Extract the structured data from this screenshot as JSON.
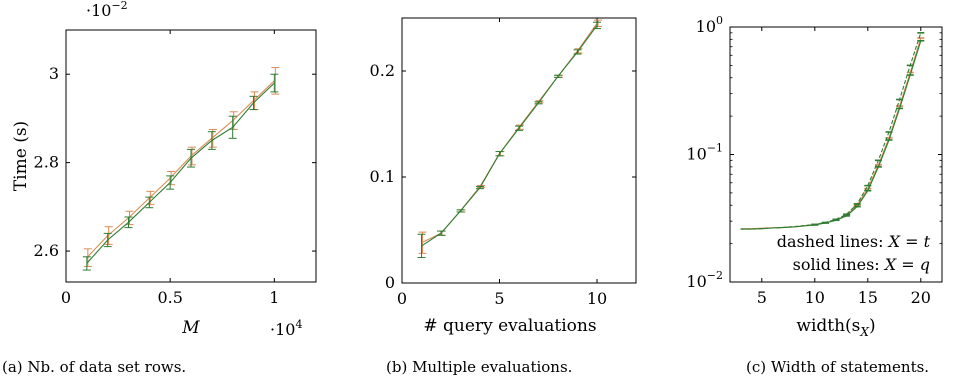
{
  "colors": {
    "green": "#2e7d32",
    "orange": "#d98c55"
  },
  "chart_data": [
    {
      "type": "line",
      "xlabel": "M",
      "ylabel": "Time (s)",
      "x_multiplier": "·10",
      "x_multiplier_exp": "4",
      "y_multiplier": "·10",
      "y_multiplier_exp": "−2",
      "xlim": [
        0,
        1.2
      ],
      "ylim": [
        2.53,
        3.1
      ],
      "xticks": [
        0,
        0.5,
        1
      ],
      "xtick_labels": [
        "0",
        "0.5",
        "1"
      ],
      "yticks": [
        2.6,
        2.8,
        3.0
      ],
      "ytick_labels": [
        "2.6",
        "2.8",
        "3"
      ],
      "caption": "(a) Nb. of data set rows.",
      "series": [
        {
          "color": "green",
          "style": "solid",
          "x": [
            0.1,
            0.2,
            0.3,
            0.4,
            0.5,
            0.6,
            0.7,
            0.8,
            0.9,
            1.0
          ],
          "y": [
            2.572,
            2.625,
            2.665,
            2.71,
            2.755,
            2.81,
            2.85,
            2.88,
            2.935,
            2.98
          ],
          "err": [
            0.015,
            0.015,
            0.012,
            0.012,
            0.015,
            0.02,
            0.02,
            0.025,
            0.015,
            0.02
          ]
        },
        {
          "color": "orange",
          "style": "solid",
          "x": [
            0.1,
            0.2,
            0.3,
            0.4,
            0.5,
            0.6,
            0.7,
            0.8,
            0.9,
            1.0
          ],
          "y": [
            2.585,
            2.635,
            2.675,
            2.72,
            2.765,
            2.815,
            2.855,
            2.895,
            2.94,
            2.985
          ],
          "err": [
            0.02,
            0.02,
            0.015,
            0.015,
            0.015,
            0.02,
            0.02,
            0.02,
            0.02,
            0.03
          ]
        }
      ]
    },
    {
      "type": "line",
      "xlabel": "# query evaluations",
      "ylabel": "",
      "xlim": [
        0,
        12
      ],
      "ylim": [
        0,
        0.25
      ],
      "xticks": [
        0,
        5,
        10
      ],
      "xtick_labels": [
        "0",
        "5",
        "10"
      ],
      "yticks": [
        0,
        0.1,
        0.2
      ],
      "ytick_labels": [
        "0",
        "0.1",
        "0.2"
      ],
      "caption": "(b) Multiple evaluations.",
      "series": [
        {
          "color": "green",
          "style": "solid",
          "x": [
            1,
            2,
            3,
            4,
            5,
            6,
            7,
            8,
            9,
            10
          ],
          "y": [
            0.035,
            0.047,
            0.068,
            0.09,
            0.122,
            0.146,
            0.17,
            0.195,
            0.218,
            0.243
          ],
          "err": [
            0.011,
            0.002,
            0.001,
            0.001,
            0.002,
            0.002,
            0.001,
            0.001,
            0.002,
            0.003
          ]
        },
        {
          "color": "orange",
          "style": "solid",
          "x": [
            1,
            2,
            3,
            4,
            5,
            6,
            7,
            8,
            9,
            10
          ],
          "y": [
            0.038,
            0.047,
            0.068,
            0.091,
            0.122,
            0.147,
            0.171,
            0.195,
            0.219,
            0.245
          ],
          "err": [
            0.01,
            0.002,
            0.001,
            0.001,
            0.002,
            0.002,
            0.001,
            0.001,
            0.002,
            0.003
          ]
        }
      ]
    },
    {
      "type": "line",
      "xlabel": "width(s",
      "xlabel_sub": "X",
      "xlabel_end": ")",
      "ylabel": "",
      "log_y": true,
      "xlim": [
        2,
        22
      ],
      "ylim": [
        0.01,
        1
      ],
      "xticks": [
        5,
        10,
        15,
        20
      ],
      "xtick_labels": [
        "5",
        "10",
        "15",
        "20"
      ],
      "yticks": [
        0.01,
        0.1,
        1
      ],
      "ytick_base": "10",
      "ytick_exps": [
        "−2",
        "−1",
        "0"
      ],
      "caption": "(c) Width of statements.",
      "annotations": [
        {
          "text": "dashed lines: ",
          "math": "X = t"
        },
        {
          "text": "solid lines: ",
          "math": "X = q"
        }
      ],
      "series": [
        {
          "color": "green",
          "style": "solid",
          "x": [
            3,
            4,
            5,
            6,
            7,
            8,
            9,
            10,
            11,
            12,
            13,
            14,
            15,
            16,
            17,
            18,
            19,
            20
          ],
          "y": [
            0.026,
            0.026,
            0.0262,
            0.0265,
            0.0267,
            0.027,
            0.0275,
            0.028,
            0.029,
            0.0305,
            0.033,
            0.039,
            0.052,
            0.08,
            0.13,
            0.23,
            0.42,
            0.78
          ]
        },
        {
          "color": "green",
          "style": "dashed",
          "x": [
            3,
            4,
            5,
            6,
            7,
            8,
            9,
            10,
            11,
            12,
            13,
            14,
            15,
            16,
            17,
            18,
            19,
            20
          ],
          "y": [
            0.026,
            0.026,
            0.0262,
            0.0265,
            0.0268,
            0.0272,
            0.0277,
            0.0283,
            0.0293,
            0.031,
            0.034,
            0.041,
            0.057,
            0.09,
            0.15,
            0.27,
            0.5,
            0.9
          ]
        },
        {
          "color": "orange",
          "style": "solid",
          "x": [
            3,
            4,
            5,
            6,
            7,
            8,
            9,
            10,
            11,
            12,
            13,
            14,
            15,
            16,
            17,
            18,
            19,
            20
          ],
          "y": [
            0.0262,
            0.0262,
            0.0264,
            0.0266,
            0.0268,
            0.0271,
            0.0276,
            0.0282,
            0.0291,
            0.0307,
            0.0335,
            0.04,
            0.054,
            0.083,
            0.135,
            0.24,
            0.44,
            0.82
          ]
        }
      ]
    }
  ]
}
